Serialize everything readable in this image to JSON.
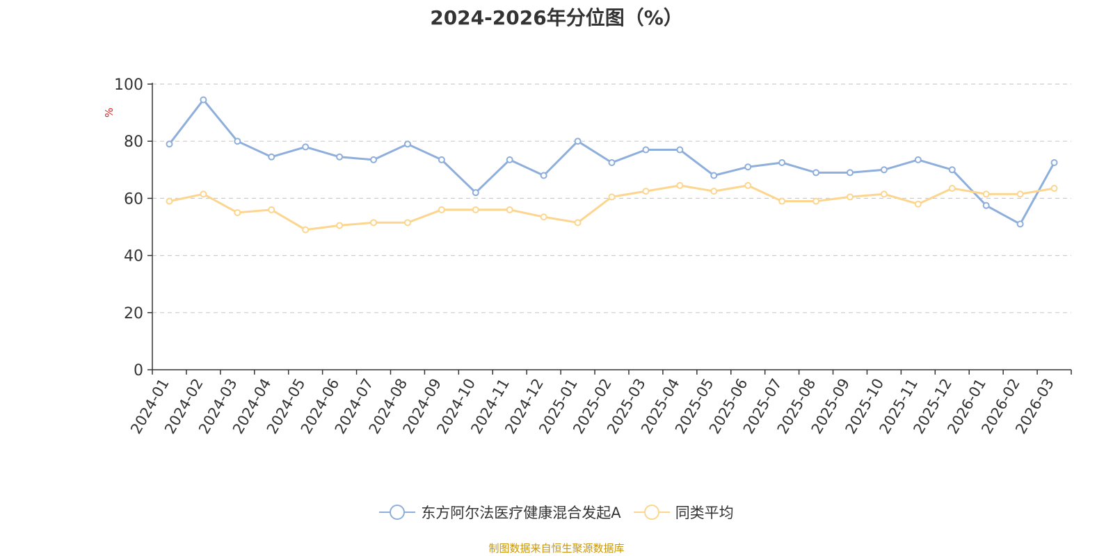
{
  "title": "2024-2026年分位图（%）",
  "source_note": "制图数据来自恒生聚源数据库",
  "chart_data": {
    "type": "line",
    "title": "2024-2026年分位图（%）",
    "ylabel": "%",
    "xlabel": "",
    "ylim": [
      0,
      100
    ],
    "yticks": [
      0,
      20,
      40,
      60,
      80,
      100
    ],
    "grid": true,
    "legend_position": "bottom",
    "categories": [
      "2024-01",
      "2024-02",
      "2024-03",
      "2024-04",
      "2024-05",
      "2024-06",
      "2024-07",
      "2024-08",
      "2024-09",
      "2024-10",
      "2024-11",
      "2024-12",
      "2025-01",
      "2025-02",
      "2025-03",
      "2025-04",
      "2025-05",
      "2025-06",
      "2025-07",
      "2025-08",
      "2025-09",
      "2025-10",
      "2025-11",
      "2025-12",
      "2026-01",
      "2026-02",
      "2026-03"
    ],
    "series": [
      {
        "name": "东方阿尔法医疗健康混合发起A",
        "color": "#8eaedb",
        "values": [
          79,
          94.5,
          80,
          74.5,
          78,
          74.5,
          73.5,
          79,
          73.5,
          62,
          73.5,
          68,
          80,
          72.5,
          77,
          77,
          68,
          71,
          72.5,
          69,
          69,
          70,
          73.5,
          70,
          57.5,
          51,
          72.5
        ]
      },
      {
        "name": "同类平均",
        "color": "#fcd58e",
        "values": [
          59,
          61.5,
          55,
          56,
          49,
          50.5,
          51.5,
          51.5,
          56,
          56,
          56,
          53.5,
          51.5,
          60.5,
          62.5,
          64.5,
          62.5,
          64.5,
          59,
          59,
          60.5,
          61.5,
          58,
          63.5,
          61.5,
          61.5,
          63.5
        ]
      }
    ]
  }
}
